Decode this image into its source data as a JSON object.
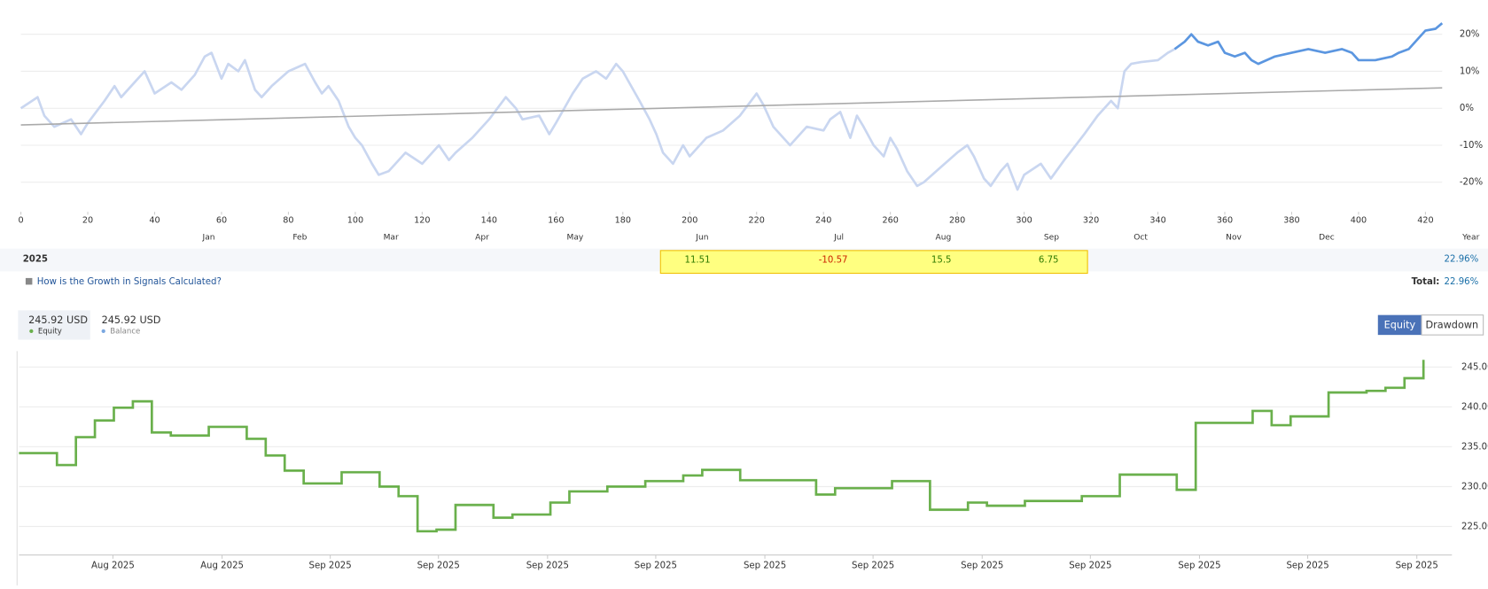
{
  "chart_data": [
    {
      "type": "line",
      "xlim": [
        0,
        425
      ],
      "ylim": [
        -28,
        24
      ],
      "xticks": [
        0,
        20,
        40,
        60,
        80,
        100,
        120,
        140,
        160,
        180,
        200,
        220,
        240,
        260,
        280,
        300,
        320,
        340,
        360,
        380,
        400,
        420
      ],
      "yticks": [
        {
          "value": -20,
          "label": "-20%"
        },
        {
          "value": -10,
          "label": "-10%"
        },
        {
          "value": 0,
          "label": "0%"
        },
        {
          "value": 10,
          "label": "10%"
        },
        {
          "value": 20,
          "label": "20%"
        }
      ],
      "grid": true,
      "period_labels": [
        "Jan",
        "Feb",
        "Mar",
        "Apr",
        "May",
        "Jun",
        "Jul",
        "Aug",
        "Sep",
        "Oct",
        "Nov",
        "Dec",
        "Year"
      ],
      "series": [
        {
          "color": "#c9d6f0",
          "x": [
            0,
            5,
            7,
            10,
            15,
            18,
            20,
            25,
            28,
            30,
            35,
            37,
            40,
            45,
            48,
            52,
            55,
            57,
            60,
            62,
            65,
            67,
            70,
            72,
            75,
            80,
            85,
            88,
            90,
            92,
            95,
            98,
            100,
            102,
            105,
            107,
            110,
            115,
            120,
            125,
            128,
            130,
            135,
            140,
            145,
            148,
            150,
            155,
            158,
            160,
            165,
            168,
            172,
            175,
            178,
            180,
            185,
            188,
            190,
            192,
            195,
            198,
            200,
            205,
            210,
            215,
            220,
            222,
            225,
            230,
            235,
            240,
            242,
            245,
            248,
            250,
            252,
            255,
            258,
            260,
            262,
            265,
            268,
            270,
            275,
            280,
            283,
            285,
            288,
            290,
            293,
            295,
            298,
            300,
            305,
            308,
            312,
            318,
            322,
            326,
            328,
            330,
            332,
            335,
            340,
            343,
            345
          ],
          "values": [
            0,
            3,
            -2,
            -5,
            -3,
            -7,
            -4,
            2,
            6,
            3,
            8,
            10,
            4,
            7,
            5,
            9,
            14,
            15,
            8,
            12,
            10,
            13,
            5,
            3,
            6,
            10,
            12,
            7,
            4,
            6,
            2,
            -5,
            -8,
            -10,
            -15,
            -18,
            -17,
            -12,
            -15,
            -10,
            -14,
            -12,
            -8,
            -3,
            3,
            0,
            -3,
            -2,
            -7,
            -4,
            4,
            8,
            10,
            8,
            12,
            10,
            2,
            -3,
            -7,
            -12,
            -15,
            -10,
            -13,
            -8,
            -6,
            -2,
            4,
            1,
            -5,
            -10,
            -5,
            -6,
            -3,
            -1,
            -8,
            -2,
            -5,
            -10,
            -13,
            -8,
            -11,
            -17,
            -21,
            -20,
            -16,
            -12,
            -10,
            -13,
            -19,
            -21,
            -17,
            -15,
            -22,
            -18,
            -15,
            -19,
            -14,
            -7,
            -2,
            2,
            0,
            10,
            12,
            12.5,
            13,
            15,
            16
          ]
        },
        {
          "color": "#5b96e0",
          "x": [
            345,
            348,
            350,
            352,
            355,
            358,
            360,
            363,
            366,
            368,
            370,
            375,
            380,
            385,
            390,
            395,
            398,
            400,
            405,
            410,
            412,
            415,
            418,
            420,
            423,
            425
          ],
          "values": [
            16,
            18,
            20,
            18,
            17,
            18,
            15,
            14,
            15,
            13,
            12,
            14,
            15,
            16,
            15,
            16,
            15,
            13,
            13,
            14,
            15,
            16,
            19,
            21,
            21.5,
            23
          ]
        },
        {
          "color": "#aaaaaa",
          "x": [
            0,
            425
          ],
          "values": [
            -4.5,
            5.5
          ]
        }
      ]
    },
    {
      "type": "step",
      "xlim": [
        0,
        74.5
      ],
      "ylim": [
        222.5,
        247
      ],
      "yticks": [
        {
          "value": 225,
          "label": "225.00"
        },
        {
          "value": 230,
          "label": "230.00"
        },
        {
          "value": 235,
          "label": "235.00"
        },
        {
          "value": 240,
          "label": "240.00"
        },
        {
          "value": 245,
          "label": "245.00"
        }
      ],
      "xticks": [
        {
          "value": 4.95,
          "label": "Aug 2025"
        },
        {
          "value": 10.7,
          "label": "Aug 2025"
        },
        {
          "value": 16.4,
          "label": "Sep 2025"
        },
        {
          "value": 22.1,
          "label": "Sep 2025"
        },
        {
          "value": 27.85,
          "label": "Sep 2025"
        },
        {
          "value": 33.55,
          "label": "Sep 2025"
        },
        {
          "value": 39.3,
          "label": "Sep 2025"
        },
        {
          "value": 45,
          "label": "Sep 2025"
        },
        {
          "value": 50.75,
          "label": "Sep 2025"
        },
        {
          "value": 56.45,
          "label": "Sep 2025"
        },
        {
          "value": 62.2,
          "label": "Sep 2025"
        },
        {
          "value": 67.9,
          "label": "Sep 2025"
        },
        {
          "value": 73.65,
          "label": "Sep 2025"
        }
      ],
      "grid": true,
      "series": [
        {
          "color": "#6ab04c",
          "values": [
            234.2,
            234.2,
            232.7,
            236.2,
            238.3,
            239.9,
            240.7,
            236.8,
            236.4,
            236.4,
            237.5,
            237.5,
            236,
            233.9,
            232,
            230.4,
            230.4,
            231.8,
            231.8,
            230,
            228.8,
            224.4,
            224.6,
            227.7,
            227.7,
            226.1,
            226.5,
            226.5,
            228,
            229.4,
            229.4,
            230,
            230,
            230.7,
            230.7,
            231.4,
            232.1,
            232.1,
            230.8,
            230.8,
            230.8,
            230.8,
            229,
            229.8,
            229.8,
            229.8,
            230.7,
            230.7,
            227.1,
            227.1,
            228,
            227.6,
            227.6,
            228.2,
            228.2,
            228.2,
            228.8,
            228.8,
            231.5,
            231.5,
            231.5,
            229.6,
            238,
            238,
            238,
            239.5,
            237.7,
            238.8,
            238.8,
            241.8,
            241.8,
            242,
            242.4,
            243.6,
            245.9
          ]
        }
      ]
    }
  ],
  "growth_table": {
    "year": "2025",
    "values": [
      11.51,
      -10.57,
      15.5,
      6.75
    ],
    "year_total": "22.96%"
  },
  "link": "How is the Growth in Signals Calculated?",
  "total": {
    "label": "Total:",
    "value": "22.96%"
  },
  "legend": [
    {
      "amount": "245.92 USD",
      "name": "Equity",
      "color": "#6ab04c"
    },
    {
      "amount": "245.92 USD",
      "name": "Balance",
      "color": "#7aa7e0"
    }
  ],
  "buttons": [
    "Equity",
    "Drawdown"
  ]
}
